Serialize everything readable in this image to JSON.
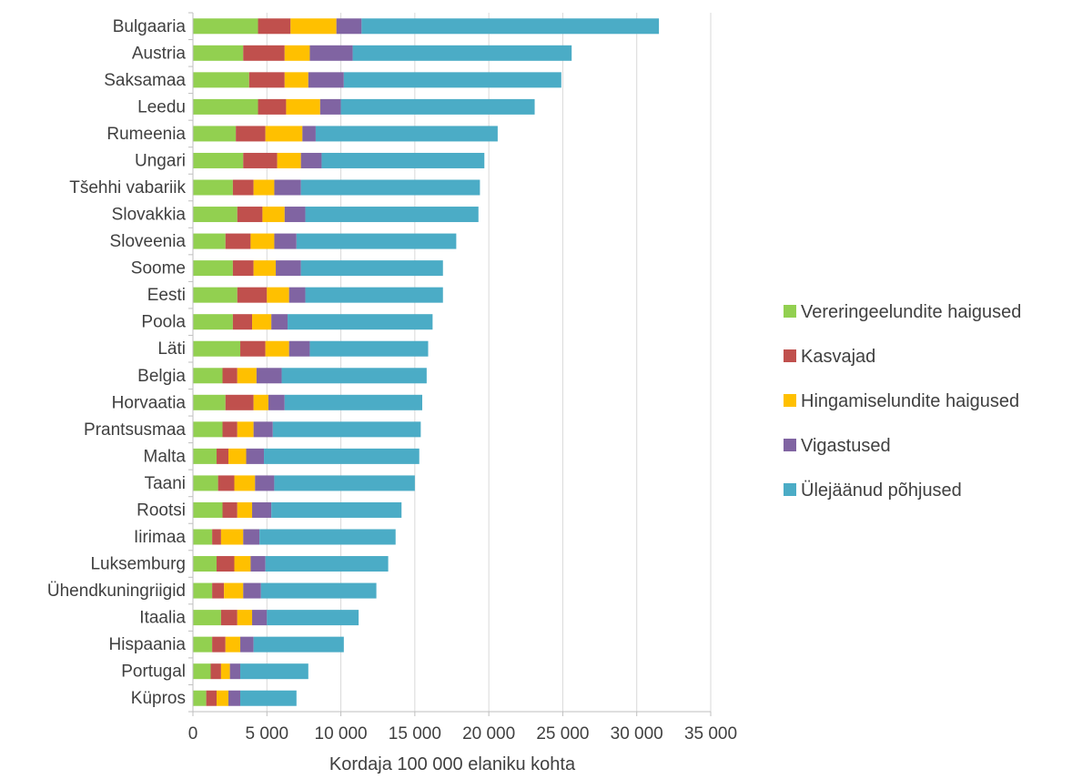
{
  "chart_data": {
    "type": "bar",
    "orientation": "horizontal",
    "stacked": true,
    "title": "",
    "xlabel": "Kordaja 100 000 elaniku kohta",
    "ylabel": "",
    "xlim": [
      0,
      35000
    ],
    "x_ticks": [
      0,
      5000,
      10000,
      15000,
      20000,
      25000,
      30000,
      35000
    ],
    "x_tick_labels": [
      "0",
      "5 000",
      "10 000",
      "15 000",
      "20 000",
      "25 000",
      "30 000",
      "35 000"
    ],
    "grid": "vertical",
    "legend_position": "right",
    "categories": [
      "Bulgaaria",
      "Austria",
      "Saksamaa",
      "Leedu",
      "Rumeenia",
      "Ungari",
      "Tšehhi vabariik",
      "Slovakkia",
      "Sloveenia",
      "Soome",
      "Eesti",
      "Poola",
      "Läti",
      "Belgia",
      "Horvaatia",
      "Prantsusmaa",
      "Malta",
      "Taani",
      "Rootsi",
      "Iirimaa",
      "Luksemburg",
      "Ühendkuningriigid",
      "Itaalia",
      "Hispaania",
      "Portugal",
      "Küpros"
    ],
    "series": [
      {
        "name": "Vereringeelundite haigused",
        "color": "#92D050",
        "values": [
          4400,
          3400,
          3800,
          4400,
          2900,
          3400,
          2700,
          3000,
          2200,
          2700,
          3000,
          2700,
          3200,
          2000,
          2200,
          2000,
          1600,
          1700,
          2000,
          1300,
          1600,
          1300,
          1900,
          1300,
          1200,
          900
        ]
      },
      {
        "name": "Kasvajad",
        "color": "#C0504D",
        "values": [
          2200,
          2800,
          2400,
          1900,
          2000,
          2300,
          1400,
          1700,
          1700,
          1400,
          2000,
          1300,
          1700,
          1000,
          1900,
          1000,
          800,
          1100,
          1000,
          600,
          1200,
          800,
          1100,
          900,
          700,
          700
        ]
      },
      {
        "name": "Hingamiselundite haigused",
        "color": "#FFC000",
        "values": [
          3100,
          1700,
          1600,
          2300,
          2500,
          1600,
          1400,
          1500,
          1600,
          1500,
          1500,
          1300,
          1600,
          1300,
          1000,
          1100,
          1200,
          1400,
          1000,
          1500,
          1100,
          1300,
          1000,
          1000,
          600,
          800
        ]
      },
      {
        "name": "Vigastused",
        "color": "#8064A2",
        "values": [
          1700,
          2900,
          2400,
          1400,
          900,
          1400,
          1800,
          1400,
          1500,
          1700,
          1100,
          1100,
          1400,
          1700,
          1100,
          1300,
          1200,
          1300,
          1300,
          1100,
          1000,
          1200,
          1000,
          900,
          700,
          800
        ]
      },
      {
        "name": "Ülejäänud põhjused",
        "color": "#4BACC6",
        "values": [
          20100,
          14800,
          14700,
          13100,
          12300,
          11000,
          12100,
          11700,
          10800,
          9600,
          9300,
          9800,
          8000,
          9800,
          9300,
          10000,
          10500,
          9500,
          8800,
          9200,
          8300,
          7800,
          6200,
          6100,
          4600,
          3800
        ]
      }
    ]
  }
}
